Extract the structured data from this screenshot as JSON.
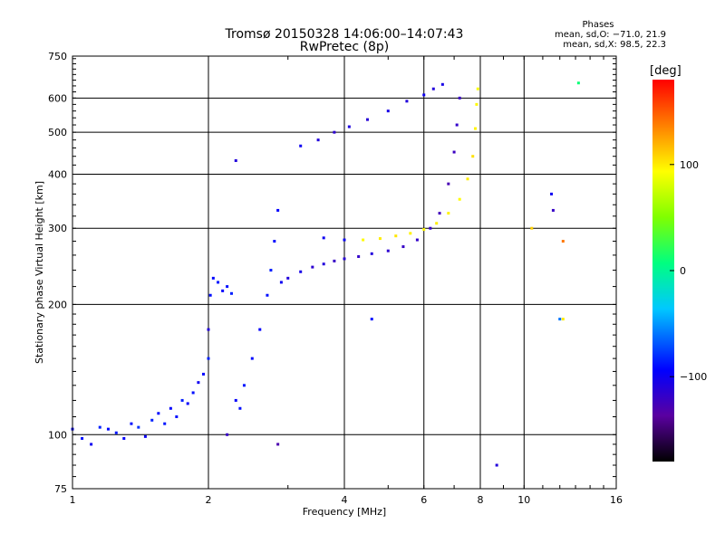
{
  "chart_data": {
    "type": "scatter",
    "title": "Tromsø 20150328 14:06:00–14:07:43",
    "subtitle": "RwPretec (8p)",
    "xlabel": "Frequency [MHz]",
    "ylabel": "Stationary phase Virtual Height [km]",
    "x_scale": "log",
    "y_scale": "log",
    "xlim": [
      1,
      16
    ],
    "ylim": [
      75,
      750
    ],
    "x_ticks": [
      1,
      2,
      4,
      6,
      8,
      10,
      16
    ],
    "y_ticks": [
      75,
      100,
      200,
      300,
      400,
      500,
      600,
      750
    ],
    "x_tick_labels": [
      "1",
      "2",
      "4",
      "6",
      "8",
      "10",
      "16"
    ],
    "y_tick_labels": [
      "75",
      "100",
      "200",
      "300",
      "400",
      "500",
      "600",
      "750"
    ],
    "grid": true,
    "phase_stats": {
      "heading": "Phases",
      "o_line": "mean, sd,O: −71.0, 21.9",
      "x_line": "mean, sd,X: 98.5, 22.3"
    },
    "colorbar": {
      "label": "[deg]",
      "range": [
        -180,
        180
      ],
      "ticks": [
        100,
        0,
        -100
      ],
      "tick_labels": [
        "100",
        "0",
        "−100"
      ]
    },
    "series": [
      {
        "trace": "low-frequency trace",
        "points": [
          [
            1.0,
            103,
            -95
          ],
          [
            1.05,
            98,
            -90
          ],
          [
            1.1,
            95,
            -100
          ],
          [
            1.15,
            104,
            -85
          ],
          [
            1.2,
            103,
            -92
          ],
          [
            1.25,
            101,
            -88
          ],
          [
            1.3,
            98,
            -95
          ],
          [
            1.35,
            106,
            -90
          ],
          [
            1.4,
            104,
            -80
          ],
          [
            1.45,
            99,
            -99
          ],
          [
            1.5,
            108,
            -85
          ],
          [
            1.55,
            112,
            -92
          ],
          [
            1.6,
            106,
            -88
          ],
          [
            1.65,
            115,
            -95
          ],
          [
            1.7,
            110,
            -90
          ],
          [
            1.75,
            120,
            -86
          ],
          [
            1.8,
            118,
            -96
          ],
          [
            1.85,
            125,
            -90
          ],
          [
            1.9,
            132,
            -100
          ],
          [
            1.95,
            138,
            -93
          ],
          [
            2.0,
            150,
            -85
          ],
          [
            2.0,
            175,
            -110
          ],
          [
            2.02,
            210,
            -90
          ],
          [
            2.05,
            230,
            -92
          ],
          [
            2.1,
            225,
            -88
          ],
          [
            2.15,
            215,
            -95
          ],
          [
            2.2,
            220,
            -90
          ],
          [
            2.25,
            212,
            -85
          ],
          [
            2.3,
            120,
            -96
          ],
          [
            2.35,
            115,
            -90
          ],
          [
            2.4,
            130,
            -88
          ],
          [
            2.5,
            150,
            -92
          ],
          [
            2.6,
            175,
            -95
          ],
          [
            2.7,
            210,
            -90
          ],
          [
            2.75,
            240,
            -86
          ],
          [
            2.8,
            280,
            -92
          ],
          [
            2.85,
            330,
            -95
          ]
        ]
      },
      {
        "trace": "F-region o-trace",
        "points": [
          [
            2.9,
            225,
            -100
          ],
          [
            3.0,
            230,
            -110
          ],
          [
            3.2,
            238,
            -105
          ],
          [
            3.4,
            244,
            -115
          ],
          [
            3.6,
            248,
            -110
          ],
          [
            3.8,
            252,
            -120
          ],
          [
            4.0,
            255,
            -112
          ],
          [
            4.3,
            258,
            -118
          ],
          [
            4.6,
            262,
            -110
          ],
          [
            5.0,
            266,
            -115
          ],
          [
            5.4,
            272,
            -120
          ],
          [
            5.8,
            282,
            -118
          ],
          [
            6.2,
            300,
            -120
          ],
          [
            6.5,
            325,
            -125
          ],
          [
            6.8,
            380,
            -128
          ],
          [
            7.0,
            450,
            -122
          ],
          [
            7.1,
            520,
            -118
          ],
          [
            7.2,
            600,
            -120
          ]
        ]
      },
      {
        "trace": "F-region x-trace",
        "points": [
          [
            3.6,
            285,
            -100
          ],
          [
            4.0,
            282,
            -98
          ],
          [
            4.4,
            282,
            95
          ],
          [
            4.8,
            284,
            100
          ],
          [
            5.2,
            288,
            102
          ],
          [
            5.6,
            292,
            98
          ],
          [
            6.0,
            298,
            96
          ],
          [
            6.4,
            308,
            100
          ],
          [
            6.8,
            325,
            98
          ],
          [
            7.2,
            350,
            95
          ],
          [
            7.5,
            390,
            100
          ],
          [
            7.7,
            440,
            104
          ],
          [
            7.8,
            510,
            98
          ],
          [
            7.85,
            580,
            96
          ],
          [
            7.9,
            630,
            92
          ]
        ]
      },
      {
        "trace": "multi-hop echo",
        "points": [
          [
            3.2,
            465,
            -100
          ],
          [
            3.5,
            480,
            -110
          ],
          [
            3.8,
            500,
            -115
          ],
          [
            4.1,
            515,
            -108
          ],
          [
            4.5,
            535,
            -112
          ],
          [
            5.0,
            560,
            -105
          ],
          [
            5.5,
            590,
            -110
          ],
          [
            6.0,
            610,
            -100
          ],
          [
            6.3,
            630,
            -110
          ],
          [
            6.6,
            645,
            -105
          ]
        ]
      },
      {
        "trace": "scattered points",
        "points": [
          [
            2.3,
            430,
            -110
          ],
          [
            4.6,
            185,
            -90
          ],
          [
            8.7,
            85,
            -110
          ],
          [
            10.4,
            300,
            110
          ],
          [
            11.5,
            360,
            -100
          ],
          [
            11.6,
            330,
            -120
          ],
          [
            12.2,
            280,
            140
          ],
          [
            12.0,
            185,
            -60
          ],
          [
            12.2,
            185,
            100
          ],
          [
            13.2,
            650,
            10
          ],
          [
            2.85,
            95,
            -130
          ],
          [
            2.2,
            100,
            -120
          ]
        ]
      }
    ]
  }
}
